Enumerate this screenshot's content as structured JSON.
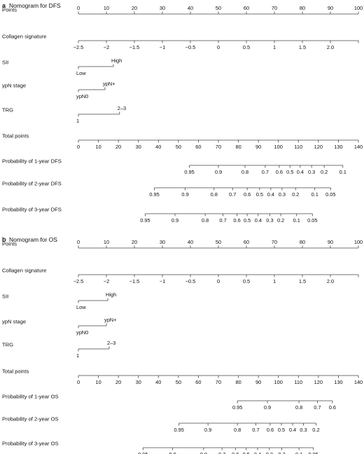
{
  "chart_data": [
    {
      "type": "nomogram",
      "panel": "a",
      "title": "Nomogram for DFS",
      "rows": [
        {
          "label": "Points",
          "kind": "scale",
          "labels_above": true,
          "ticks": [
            0,
            10,
            20,
            30,
            40,
            50,
            60,
            70,
            80,
            90,
            100
          ],
          "tick_labels": [
            "0",
            "10",
            "20",
            "30",
            "40",
            "50",
            "60",
            "70",
            "80",
            "90",
            "100"
          ],
          "x_points": [
            0,
            10,
            20,
            30,
            40,
            50,
            60,
            70,
            80,
            90,
            100
          ]
        },
        {
          "label": "Collagen signature",
          "kind": "scale",
          "labels_above": false,
          "ticks": [
            -2.5,
            -2,
            -1.5,
            -1,
            -0.5,
            0,
            0.5,
            1,
            1.5,
            2
          ],
          "tick_labels": [
            "−2.5",
            "−2",
            "−1.5",
            "−1",
            "−0.5",
            "0",
            "0.5",
            "1",
            "1.5",
            "2.0"
          ],
          "x_points": [
            0,
            10,
            20,
            30,
            40,
            50,
            60,
            70,
            80,
            90,
            100
          ]
        },
        {
          "label": "SII",
          "kind": "binary",
          "low": "Low",
          "high": "High",
          "x_points": [
            0,
            12.5
          ]
        },
        {
          "label": "ypN stage",
          "kind": "binary",
          "low": "ypN0",
          "high": "ypN+",
          "x_points": [
            0,
            9.5
          ]
        },
        {
          "label": "TRG",
          "kind": "binary",
          "low": "1",
          "high": "2–3",
          "x_points": [
            0,
            14.7
          ]
        },
        {
          "label": "Total points",
          "kind": "total",
          "labels_above": false,
          "ticks": [
            0,
            10,
            20,
            30,
            40,
            50,
            60,
            70,
            80,
            90,
            100,
            110,
            120,
            130,
            140
          ],
          "tick_labels": [
            "0",
            "10",
            "20",
            "30",
            "40",
            "50",
            "60",
            "70",
            "80",
            "90",
            "100",
            "110",
            "120",
            "130",
            "140"
          ],
          "x_points": [
            0,
            10,
            20,
            30,
            40,
            50,
            60,
            70,
            80,
            90,
            100,
            110,
            120,
            130,
            140
          ]
        },
        {
          "label": "Probability of 1-year DFS",
          "kind": "probability",
          "labels_above": false,
          "ticks": [
            0.95,
            0.9,
            0.8,
            0.7,
            0.6,
            0.5,
            0.4,
            0.3,
            0.2,
            0.1
          ],
          "tick_labels": [
            "0.95",
            "0.9",
            "0.8",
            "0.7",
            "0.6",
            "0.5",
            "0.4",
            "0.3",
            "0.2",
            "0.1"
          ],
          "total_points": [
            55.5,
            70,
            83.3,
            93.4,
            100.4,
            105.8,
            110.9,
            116.6,
            122.9,
            132.2
          ]
        },
        {
          "label": "Probability of 2-year DFS",
          "kind": "probability",
          "labels_above": false,
          "ticks": [
            0.95,
            0.9,
            0.8,
            0.7,
            0.6,
            0.5,
            0.4,
            0.3,
            0.2,
            0.1,
            0.05
          ],
          "tick_labels": [
            "0.95",
            "0.9",
            "0.8",
            "0.7",
            "0.6",
            "0.5",
            "0.4",
            "0.3",
            "0.2",
            "0.1",
            "0.05"
          ],
          "total_points": [
            38,
            53.4,
            67.8,
            77.1,
            84.4,
            90.6,
            96.2,
            101.8,
            108.6,
            118.2,
            126.1
          ]
        },
        {
          "label": "Probability of 3-year DFS",
          "kind": "probability",
          "labels_above": false,
          "ticks": [
            0.95,
            0.9,
            0.8,
            0.7,
            0.6,
            0.5,
            0.4,
            0.3,
            0.2,
            0.1,
            0.05
          ],
          "tick_labels": [
            "0.95",
            "0.9",
            "0.8",
            "0.7",
            "0.6",
            "0.5",
            "0.4",
            "0.3",
            "0.2",
            "0.1",
            "0.05"
          ],
          "total_points": [
            33.4,
            48.3,
            63.4,
            72.3,
            79.3,
            84.4,
            89.9,
            95.7,
            101.2,
            109.1,
            117
          ]
        }
      ]
    },
    {
      "type": "nomogram",
      "panel": "b",
      "title": "Nomogram for OS",
      "rows": [
        {
          "label": "Points",
          "kind": "scale",
          "labels_above": true,
          "ticks": [
            0,
            10,
            20,
            30,
            40,
            50,
            60,
            70,
            80,
            90,
            100
          ],
          "tick_labels": [
            "0",
            "10",
            "20",
            "30",
            "40",
            "50",
            "60",
            "70",
            "80",
            "90",
            "100"
          ],
          "x_points": [
            0,
            10,
            20,
            30,
            40,
            50,
            60,
            70,
            80,
            90,
            100
          ]
        },
        {
          "label": "Collagen signature",
          "kind": "scale",
          "labels_above": false,
          "ticks": [
            -2.5,
            -2,
            -1.5,
            -1,
            -0.5,
            0,
            0.5,
            1,
            1.5,
            2
          ],
          "tick_labels": [
            "−2.5",
            "−2",
            "−1.5",
            "−1",
            "−0.5",
            "0",
            "0.5",
            "1",
            "1.5",
            "2.0"
          ],
          "x_points": [
            0,
            10,
            20,
            30,
            40,
            50,
            60,
            70,
            80,
            90,
            100
          ]
        },
        {
          "label": "SII",
          "kind": "binary",
          "low": "Low",
          "high": "High",
          "x_points": [
            0,
            10.5
          ]
        },
        {
          "label": "ypN stage",
          "kind": "binary",
          "low": "ypN0",
          "high": "ypN+",
          "x_points": [
            0,
            10
          ]
        },
        {
          "label": "TRG",
          "kind": "binary",
          "low": "1",
          "high": "2–3",
          "x_points": [
            0,
            11
          ]
        },
        {
          "label": "Total points",
          "kind": "total",
          "labels_above": false,
          "ticks": [
            0,
            10,
            20,
            30,
            40,
            50,
            60,
            70,
            80,
            90,
            100,
            110,
            120,
            130,
            140
          ],
          "tick_labels": [
            "0",
            "10",
            "20",
            "30",
            "40",
            "50",
            "60",
            "70",
            "80",
            "90",
            "100",
            "110",
            "120",
            "130",
            "140"
          ],
          "x_points": [
            0,
            10,
            20,
            30,
            40,
            50,
            60,
            70,
            80,
            90,
            100,
            110,
            120,
            130,
            140
          ]
        },
        {
          "label": "Probability of 1-year OS",
          "kind": "probability",
          "labels_above": false,
          "ticks": [
            0.95,
            0.9,
            0.8,
            0.7,
            0.6
          ],
          "tick_labels": [
            "0.95",
            "0.9",
            "0.8",
            "0.7",
            "0.6"
          ],
          "total_points": [
            79.5,
            94.5,
            110.3,
            119.5,
            127
          ]
        },
        {
          "label": "Probability of 2-year OS",
          "kind": "probability",
          "labels_above": false,
          "ticks": [
            0.95,
            0.9,
            0.8,
            0.7,
            0.6,
            0.5,
            0.4,
            0.3,
            0.2
          ],
          "tick_labels": [
            "0.95",
            "0.9",
            "0.8",
            "0.7",
            "0.6",
            "0.5",
            "0.4",
            "0.3",
            "0.2"
          ],
          "total_points": [
            50.3,
            64.8,
            79.5,
            88.7,
            95.9,
            101.5,
            107.1,
            112.5,
            118.8
          ]
        },
        {
          "label": "Probability of 3-year OS",
          "kind": "probability",
          "labels_above": false,
          "ticks": [
            0.95,
            0.9,
            0.8,
            0.7,
            0.6,
            0.5,
            0.4,
            0.3,
            0.2,
            0.1,
            0.05
          ],
          "tick_labels": [
            "0.95",
            "0.9",
            "0.8",
            "0.7",
            "0.6",
            "0.5",
            "0.4",
            "0.3",
            "0.2",
            "0.1",
            "0.05"
          ],
          "total_points": [
            32.3,
            47.1,
            62.6,
            71.8,
            78.5,
            83.9,
            89.6,
            95.5,
            101.7,
            110.3,
            117.5
          ]
        }
      ]
    }
  ]
}
